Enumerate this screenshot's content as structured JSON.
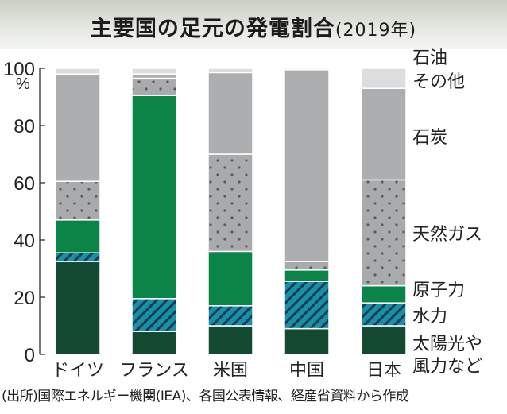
{
  "chart_data": {
    "type": "bar",
    "stacked": true,
    "title": "主要国の足元の発電割合",
    "subtitle": "(2019年)",
    "ylabel": "%",
    "ylim": [
      0,
      100
    ],
    "yticks": [
      0,
      20,
      40,
      60,
      80,
      100
    ],
    "categories": [
      "ドイツ",
      "フランス",
      "米国",
      "中国",
      "日本"
    ],
    "series": [
      {
        "name": "太陽光や風力など",
        "color": "#144a31",
        "pattern": "solid",
        "values": [
          32.5,
          8,
          10,
          9,
          10
        ]
      },
      {
        "name": "水力",
        "color": "#1a8fa8",
        "pattern": "stripes",
        "values": [
          3,
          11.5,
          7,
          16.5,
          8
        ]
      },
      {
        "name": "原子力",
        "color": "#0b8447",
        "pattern": "solid",
        "values": [
          11.5,
          71,
          19,
          4,
          6
        ]
      },
      {
        "name": "天然ガス",
        "color": "#a9aaac",
        "pattern": "dots",
        "values": [
          13.5,
          6,
          34,
          3,
          37
        ]
      },
      {
        "name": "石炭",
        "color": "#adaeb0",
        "pattern": "solid",
        "values": [
          37.5,
          1.5,
          28.5,
          67,
          32
        ]
      },
      {
        "name": "石油その他",
        "color": "#dcddde",
        "pattern": "solid",
        "values": [
          2,
          2,
          1.5,
          0.5,
          7
        ]
      }
    ],
    "legend_labels": [
      "石油",
      "その他",
      "石炭",
      "天然ガス",
      "原子力",
      "水力",
      "太陽光や",
      "風力など"
    ],
    "legend": "right"
  },
  "source": "(出所)国際エネルギー機関(IEA)、各国公表情報、経産省資料から作成"
}
